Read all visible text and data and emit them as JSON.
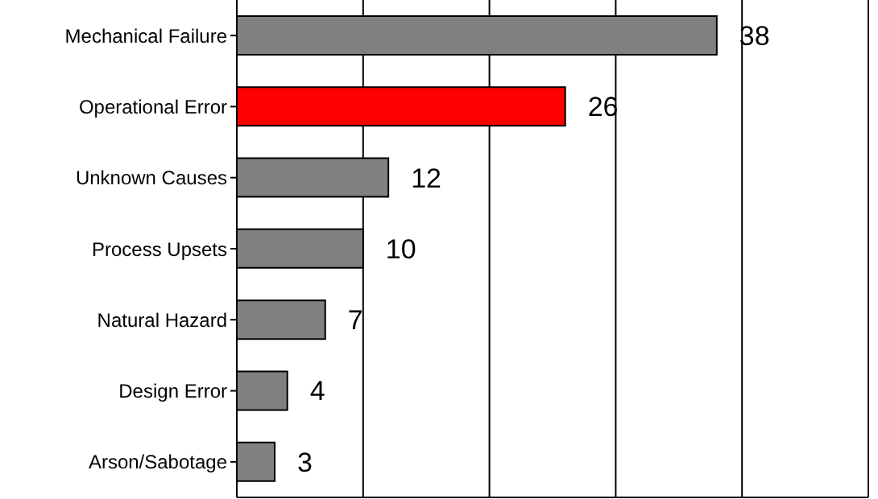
{
  "chart_data": {
    "type": "bar",
    "orientation": "horizontal",
    "categories": [
      "Mechanical Failure",
      "Operational Error",
      "Unknown Causes",
      "Process Upsets",
      "Natural Hazard",
      "Design Error",
      "Arson/Sabotage"
    ],
    "values": [
      38,
      26,
      12,
      10,
      7,
      4,
      3
    ],
    "colors": [
      "#808080",
      "#ff0000",
      "#808080",
      "#808080",
      "#808080",
      "#808080",
      "#808080"
    ],
    "xlim": [
      0,
      50
    ],
    "xticks": [
      {
        "value": 0,
        "label": null
      },
      {
        "value": 10,
        "label": null
      },
      {
        "value": 20,
        "label": null
      },
      {
        "value": 30,
        "label": null
      },
      {
        "value": 40,
        "label": null
      },
      {
        "value": 50,
        "label": null
      }
    ],
    "grid": "x",
    "tick_labels": "y",
    "data_labels": true
  }
}
